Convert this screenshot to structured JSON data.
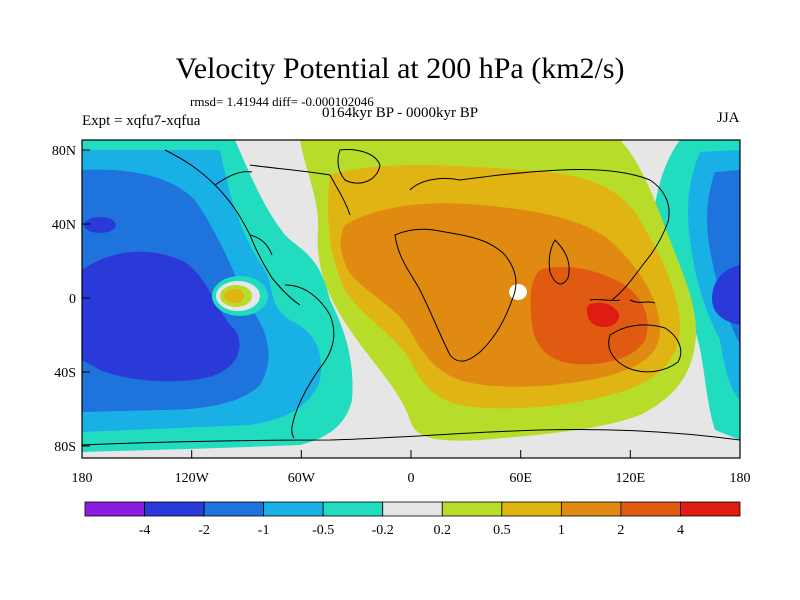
{
  "title": "Velocity Potential at 200 hPa (km2/s)",
  "stats": "rmsd= 1.41944 diff= -0.000102046",
  "period": "0164kyr BP - 0000kyr BP",
  "experiment": "Expt = xqfu7-xqfua",
  "season": "JJA",
  "map": {
    "lat_ticks": [
      "80N",
      "40N",
      "0",
      "40S",
      "80S"
    ],
    "lon_ticks": [
      "180",
      "120W",
      "60W",
      "0",
      "60E",
      "120E",
      "180"
    ]
  },
  "colorbar": {
    "labels": [
      "-4",
      "-2",
      "-1",
      "-0.5",
      "-0.2",
      "0.2",
      "0.5",
      "1",
      "2",
      "4"
    ],
    "colors": [
      "#8a1ee0",
      "#2a3ad8",
      "#1f73dc",
      "#19b0e6",
      "#22dcbf",
      "#e6e6e6",
      "#b8dc2a",
      "#e0b412",
      "#e08a12",
      "#e05a12",
      "#e01c12"
    ]
  }
}
